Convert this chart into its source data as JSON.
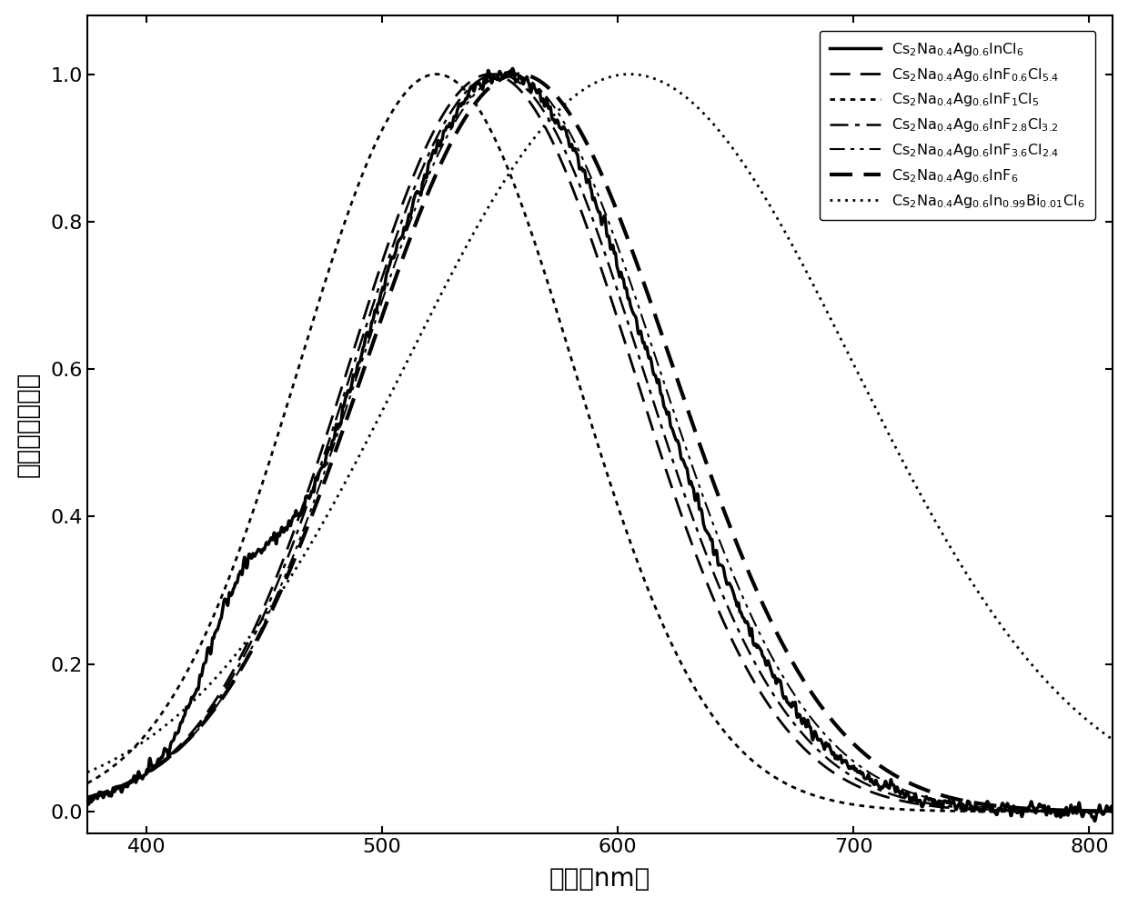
{
  "xlim": [
    375,
    810
  ],
  "ylim": [
    -0.03,
    1.08
  ],
  "xticks": [
    400,
    500,
    600,
    700,
    800
  ],
  "yticks": [
    0.0,
    0.2,
    0.4,
    0.6,
    0.8,
    1.0
  ],
  "xlabel": "波长（nm）",
  "ylabel": "归一化后的强度",
  "background": "#ffffff",
  "peak_params": [
    [
      552,
      62,
      440,
      0.13,
      true
    ],
    [
      546,
      60,
      0,
      0,
      false
    ],
    [
      523,
      58,
      0,
      0,
      false
    ],
    [
      549,
      61,
      0,
      0,
      false
    ],
    [
      554,
      63,
      0,
      0,
      false
    ],
    [
      558,
      65,
      0,
      0,
      false
    ],
    [
      605,
      95,
      0,
      0,
      false
    ]
  ],
  "linestyles": [
    [
      0,
      []
    ],
    [
      0,
      [
        8,
        4
      ]
    ],
    [
      0,
      [
        2,
        2
      ]
    ],
    [
      0,
      [
        8,
        3,
        2,
        3
      ]
    ],
    [
      0,
      [
        8,
        3,
        2,
        3,
        2,
        3
      ]
    ],
    [
      0,
      [
        6,
        3
      ]
    ],
    [
      0,
      [
        1,
        2
      ]
    ]
  ],
  "linewidths": [
    2.5,
    2.0,
    2.0,
    1.8,
    1.5,
    3.0,
    2.0
  ],
  "legend_labels": [
    "Cs$_2$Na$_{0.4}$Ag$_{0.6}$InCl$_6$",
    "Cs$_2$Na$_{0.4}$Ag$_{0.6}$InF$_{0.6}$Cl$_{5.4}$",
    "Cs$_2$Na$_{0.4}$Ag$_{0.6}$InF$_1$Cl$_5$",
    "Cs$_2$Na$_{0.4}$Ag$_{0.6}$InF$_{2.8}$Cl$_{3.2}$",
    "Cs$_2$Na$_{0.4}$Ag$_{0.6}$InF$_{3.6}$Cl$_{2.4}$",
    "Cs$_2$Na$_{0.4}$Ag$_{0.6}$InF$_6$",
    "Cs$_2$Na$_{0.4}$Ag$_{0.6}$In$_{0.99}$Bi$_{0.01}$Cl$_6$"
  ]
}
